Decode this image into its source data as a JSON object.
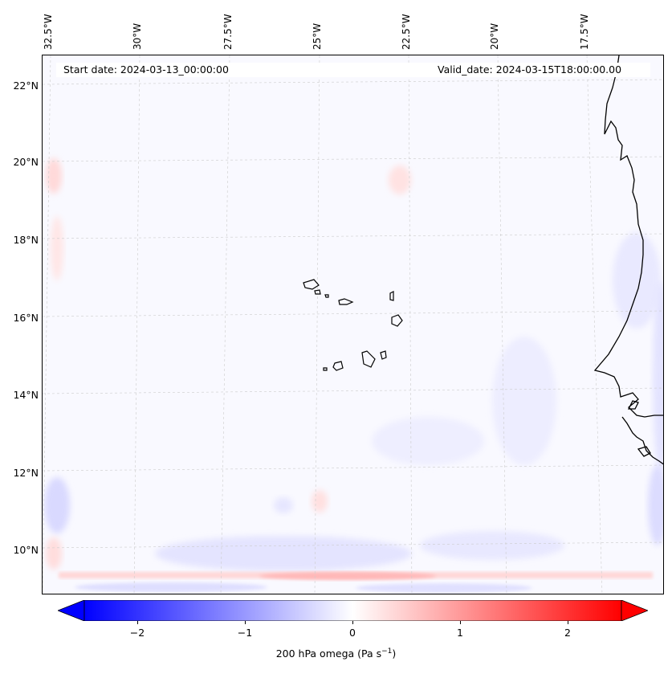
{
  "map": {
    "start_date": "Start date: 2024-03-13_00:00:00",
    "valid_date": "Valid_date: 2024-03-15T18:00:00.00",
    "longitude_labels": [
      "32.5°W",
      "30°W",
      "27.5°W",
      "25°W",
      "22.5°W",
      "20°W",
      "17.5°W"
    ],
    "latitude_labels": [
      "22°N",
      "20°N",
      "18°N",
      "16°N",
      "14°N",
      "12°N",
      "10°N"
    ],
    "field": "200 hPa omega",
    "units": "Pa s⁻¹"
  },
  "colorbar": {
    "label_prefix": "200 hPa omega (Pa s",
    "label_exp": "−1",
    "label_suffix": ")",
    "ticks": [
      "−2",
      "−1",
      "0",
      "1",
      "2"
    ],
    "tick_values": [
      -2,
      -1,
      0,
      1,
      2
    ],
    "range": [
      -2.6,
      2.6
    ],
    "colormap": "bwr",
    "min_color": "#0000ff",
    "mid_color": "#ffffff",
    "max_color": "#ff0000",
    "extend": "both"
  },
  "colors": {
    "coastline": "#000000",
    "gridline": "#cccccc",
    "background": "#f9f9ff"
  }
}
